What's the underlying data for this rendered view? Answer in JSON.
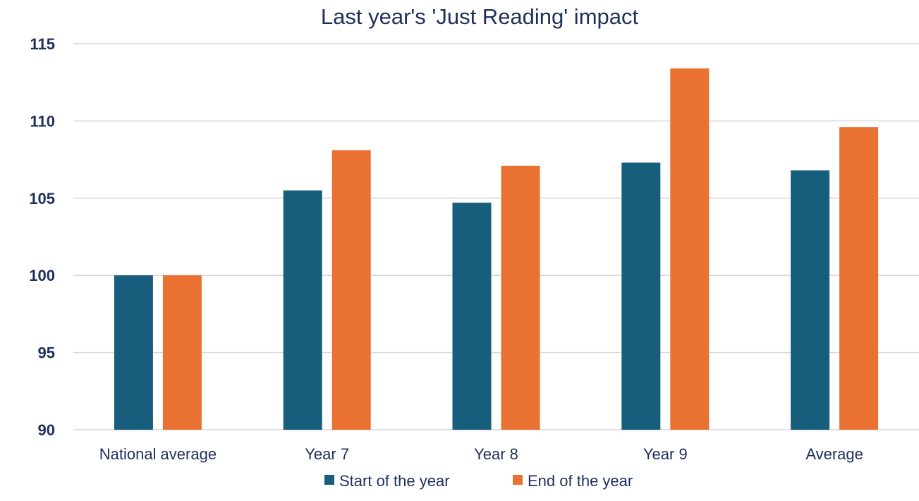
{
  "chart_data": {
    "type": "bar",
    "title": "Last year's 'Just Reading' impact",
    "categories": [
      "National average",
      "Year 7",
      "Year 8",
      "Year 9",
      "Average"
    ],
    "series": [
      {
        "name": "Start of the year",
        "color": "#175d7c",
        "values": [
          100,
          105.5,
          104.7,
          107.3,
          106.8
        ]
      },
      {
        "name": "End of the year",
        "color": "#e97132",
        "values": [
          100,
          108.1,
          107.1,
          113.4,
          109.6
        ]
      }
    ],
    "xlabel": "",
    "ylabel": "",
    "ylim": [
      90,
      115
    ],
    "yticks": [
      "90",
      "95",
      "100",
      "105",
      "110",
      "115"
    ],
    "grid": true,
    "legend_position": "bottom"
  }
}
